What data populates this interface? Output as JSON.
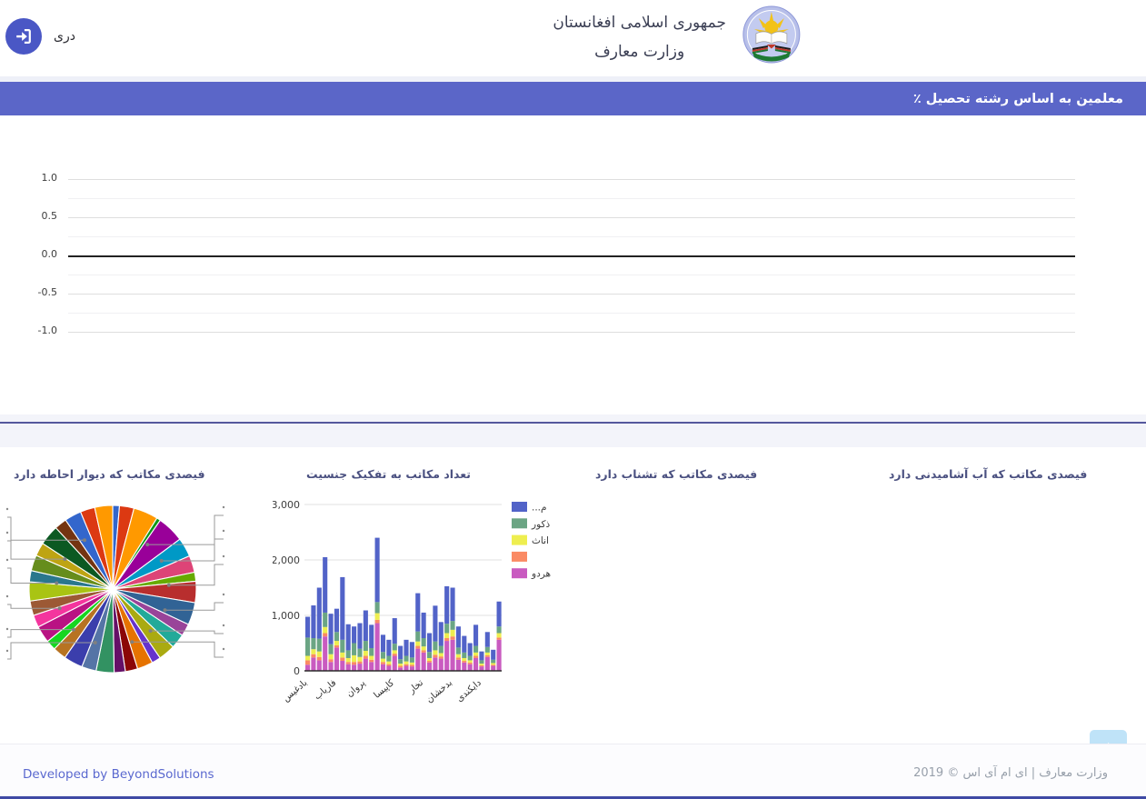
{
  "header": {
    "language_label": "دری",
    "org_line1": "جمهوری اسلامی افغانستان",
    "org_line2": "وزارت معارف"
  },
  "banner": {
    "title": "معلمین به اساس رشته تحصیل ٪",
    "bg": "#5b66c8"
  },
  "icons": {
    "scroll_top": "↑",
    "login": "sign-in-arrow"
  },
  "footer": {
    "left": "Developed by BeyondSolutions",
    "right": "2019 © وزارت معارف | ای ام آی اس"
  },
  "chart_data": [
    {
      "type": "line",
      "title": "معلمین به اساس رشته تحصیل ٪",
      "empty": true,
      "y_ticks": [
        "1.0",
        "0.5",
        "0.0",
        "-0.5",
        "-1.0"
      ],
      "ylim": [
        -1.25,
        1.25
      ],
      "grid": true,
      "series": []
    },
    {
      "type": "pie",
      "title": "فیصدی مکاتب که دیوار احاطه دارد",
      "values": [
        1.2,
        2.6,
        4.4,
        0.7,
        4.8,
        3.4,
        3.0,
        1.6,
        3.8,
        4.0,
        2.2,
        2.6,
        3.0,
        1.6,
        2.8,
        2.2,
        2.0,
        3.2,
        2.6,
        3.4,
        2.4,
        1.8,
        3.0,
        2.2,
        2.6,
        3.4,
        2.0,
        2.8,
        2.4,
        3.6,
        2.2,
        3.0,
        2.6,
        3.2
      ],
      "colors": [
        "#3366CC",
        "#DC3912",
        "#FF9900",
        "#109618",
        "#990099",
        "#0099C6",
        "#DD4477",
        "#66AA00",
        "#B82E2E",
        "#316395",
        "#994499",
        "#22AA99",
        "#AAAA11",
        "#6633CC",
        "#E67300",
        "#8B0707",
        "#651067",
        "#329262",
        "#5574A6",
        "#3B3EAC",
        "#B77322",
        "#16D620",
        "#B91383",
        "#F4359E",
        "#9C5935",
        "#A9C413",
        "#2A778D",
        "#668D1C",
        "#BEA413",
        "#0C5922",
        "#743411",
        "#3366CC",
        "#DC3912",
        "#FF9900"
      ]
    },
    {
      "type": "stacked-bar",
      "title": "تعداد مکاتب به تفکیک جنسیت",
      "ylim": [
        0,
        3000
      ],
      "y_ticks": [
        "0",
        "1,000",
        "2,000",
        "3,000"
      ],
      "x_tick_labels": [
        "بادغیس",
        "فاریاب",
        "پروان",
        "کاپیسا",
        "تخار",
        "بدخشان",
        "دایکندی"
      ],
      "x_tick_indices": [
        0,
        5,
        10,
        15,
        20,
        25,
        30
      ],
      "legend_position": "right",
      "series": [
        {
          "name": "...م",
          "color": "#5263c8",
          "values": [
            375,
            590,
            920,
            1000,
            550,
            420,
            1130,
            470,
            300,
            460,
            550,
            420,
            1160,
            310,
            290,
            460,
            240,
            290,
            280,
            690,
            460,
            340,
            645,
            430,
            675,
            600,
            380,
            300,
            230,
            380,
            160,
            270,
            180,
            450
          ]
        },
        {
          "name": "ذکور",
          "color": "#6ba584",
          "values": [
            330,
            200,
            230,
            260,
            180,
            160,
            230,
            140,
            220,
            150,
            180,
            140,
            200,
            120,
            100,
            120,
            80,
            100,
            90,
            180,
            150,
            110,
            160,
            130,
            170,
            160,
            120,
            100,
            80,
            120,
            60,
            100,
            60,
            120
          ]
        },
        {
          "name": "اناث",
          "color": "#eeee4f",
          "values": [
            80,
            90,
            100,
            110,
            90,
            80,
            90,
            70,
            120,
            80,
            90,
            70,
            120,
            60,
            50,
            60,
            40,
            50,
            40,
            80,
            70,
            50,
            80,
            60,
            90,
            120,
            60,
            50,
            40,
            60,
            30,
            50,
            30,
            80
          ]
        },
        {
          "name": "",
          "color": "#fa8a64",
          "values": [
            80,
            60,
            60,
            60,
            50,
            40,
            60,
            40,
            50,
            40,
            50,
            40,
            60,
            40,
            30,
            40,
            30,
            30,
            30,
            50,
            40,
            30,
            50,
            40,
            50,
            60,
            40,
            30,
            30,
            40,
            20,
            30,
            20,
            40
          ]
        },
        {
          "name": "هردو",
          "color": "#c95bc0",
          "values": [
            110,
            240,
            190,
            620,
            160,
            420,
            180,
            120,
            110,
            130,
            220,
            160,
            860,
            120,
            90,
            270,
            60,
            90,
            80,
            400,
            330,
            150,
            240,
            220,
            540,
            560,
            200,
            150,
            120,
            230,
            80,
            250,
            90,
            560
          ]
        }
      ]
    },
    {
      "type": "empty",
      "title": "فیصدی مکاتب که تشناب دارد"
    },
    {
      "type": "empty",
      "title": "فیصدی مکاتب که آب آشامیدنی دارد"
    }
  ]
}
